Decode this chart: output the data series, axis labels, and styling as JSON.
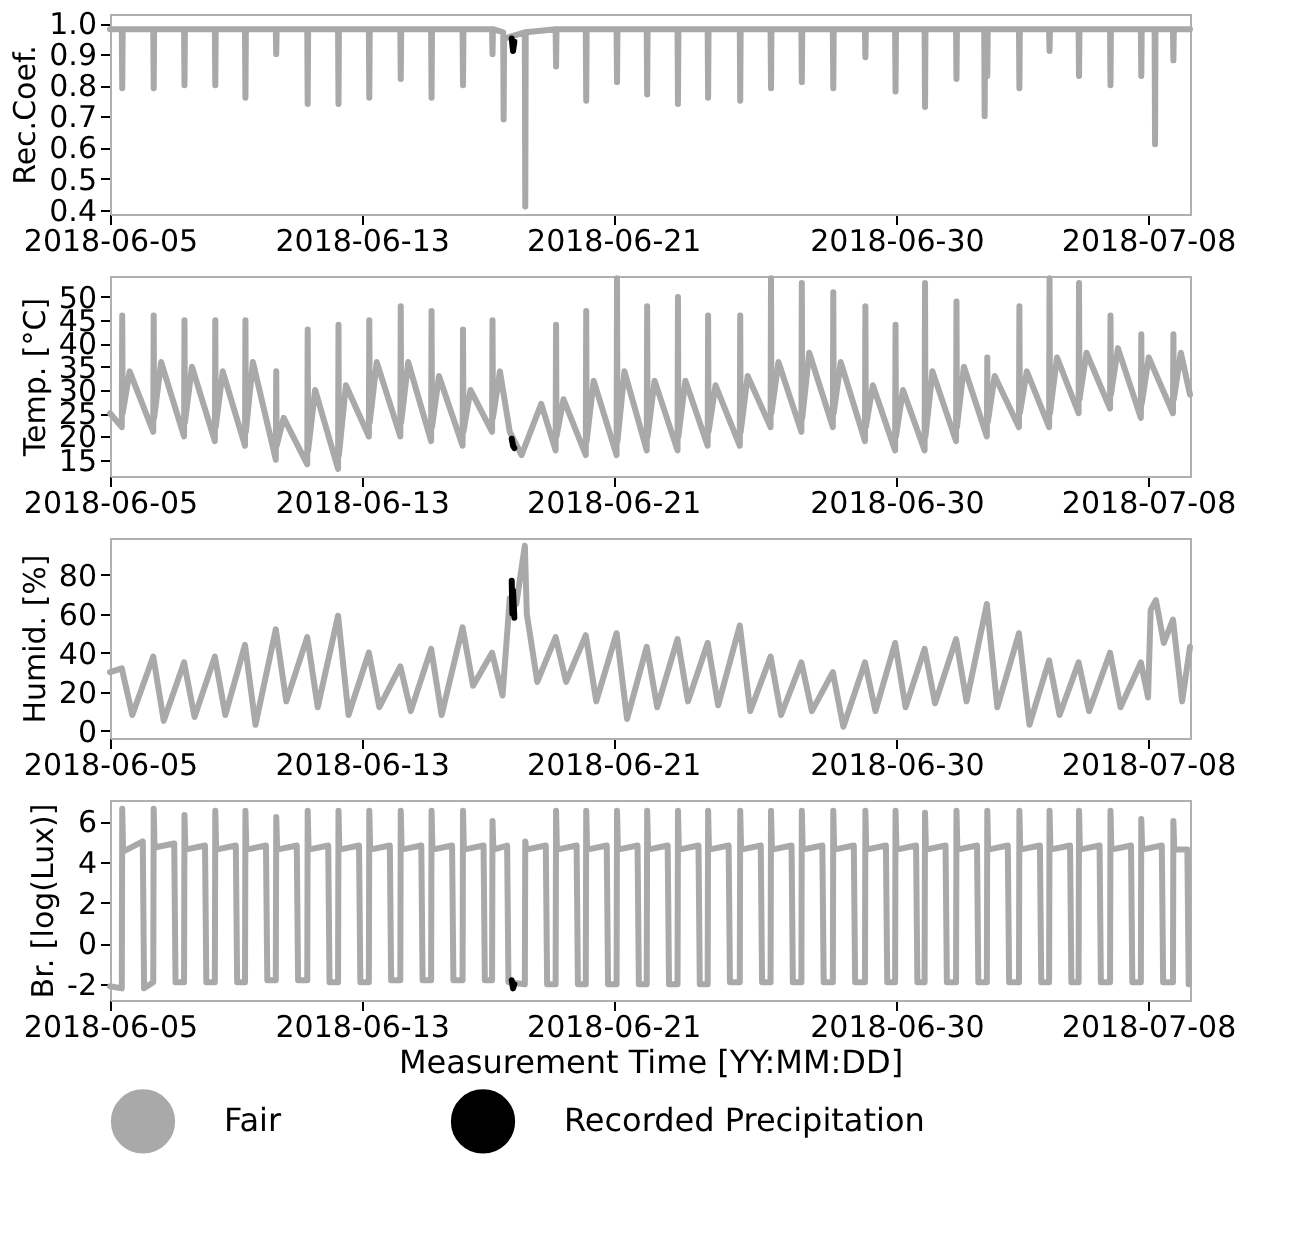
{
  "chart_data": [
    {
      "type": "line",
      "ylabel": "Rec.Coef.",
      "xlim": [
        "2018-06-05T00:00",
        "2018-07-09T08:00"
      ],
      "xticks": [
        "2018-06-05",
        "2018-06-13",
        "2018-06-21",
        "2018-06-30",
        "2018-07-08"
      ],
      "ylim": [
        0.386,
        1.029
      ],
      "yticks": [
        0.4,
        0.5,
        0.6,
        0.7,
        0.8,
        0.9,
        {
          "value": 1.0,
          "label": "1.0"
        }
      ],
      "grid": false,
      "legend": "bottom",
      "series": [
        {
          "name": "Fair",
          "color": "#a9a9a9",
          "x": [
            "2018-06-05T00:00",
            "2018-06-05T09:00",
            "2018-06-05T09:20",
            "2018-06-05T09:40",
            "2018-06-06T09:00",
            "2018-06-06T09:20",
            "2018-06-06T09:40",
            "2018-06-07T08:30",
            "2018-06-07T08:50",
            "2018-06-07T09:10",
            "2018-06-08T08:00",
            "2018-06-08T08:20",
            "2018-06-08T08:40",
            "2018-06-09T07:00",
            "2018-06-09T07:20",
            "2018-06-09T07:40",
            "2018-06-10T06:30",
            "2018-06-10T06:50",
            "2018-06-10T07:10",
            "2018-06-11T06:30",
            "2018-06-11T06:50",
            "2018-06-11T07:10",
            "2018-06-12T06:00",
            "2018-06-12T06:20",
            "2018-06-12T06:40",
            "2018-06-13T05:30",
            "2018-06-13T05:50",
            "2018-06-13T06:10",
            "2018-06-14T05:30",
            "2018-06-14T05:50",
            "2018-06-14T06:10",
            "2018-06-15T05:00",
            "2018-06-15T05:20",
            "2018-06-15T05:40",
            "2018-06-16T05:00",
            "2018-06-16T05:20",
            "2018-06-16T05:40",
            "2018-06-17T03:30",
            "2018-06-17T03:50",
            "2018-06-17T04:10",
            "2018-06-17T12:00",
            "2018-06-17T12:20",
            "2018-06-17T12:40",
            "2018-06-18T04:30",
            "2018-06-18T04:50",
            "2018-06-18T05:10",
            "2018-06-19T04:00",
            "2018-06-19T04:20",
            "2018-06-19T04:40",
            "2018-06-20T03:00",
            "2018-06-20T03:20",
            "2018-06-20T03:40",
            "2018-06-21T02:30",
            "2018-06-21T02:50",
            "2018-06-21T03:10",
            "2018-06-22T01:30",
            "2018-06-22T01:50",
            "2018-06-22T02:10",
            "2018-06-23T01:00",
            "2018-06-23T01:20",
            "2018-06-23T01:40",
            "2018-06-24T00:00",
            "2018-06-24T00:20",
            "2018-06-24T00:40",
            "2018-06-25T00:30",
            "2018-06-25T00:50",
            "2018-06-25T01:10",
            "2018-06-26T00:00",
            "2018-06-26T00:20",
            "2018-06-26T00:40",
            "2018-06-26T23:30",
            "2018-06-26T23:50",
            "2018-06-27T00:10",
            "2018-06-27T23:30",
            "2018-06-27T23:50",
            "2018-06-28T00:10",
            "2018-06-29T00:00",
            "2018-06-29T00:20",
            "2018-06-29T00:40",
            "2018-06-29T23:00",
            "2018-06-29T23:20",
            "2018-06-29T23:40",
            "2018-06-30T21:30",
            "2018-06-30T21:50",
            "2018-06-30T22:10",
            "2018-07-01T21:30",
            "2018-07-01T21:50",
            "2018-07-01T22:10",
            "2018-07-02T19:00",
            "2018-07-02T19:20",
            "2018-07-02T19:40",
            "2018-07-02T21:00",
            "2018-07-02T21:20",
            "2018-07-02T21:40",
            "2018-07-03T21:30",
            "2018-07-03T21:50",
            "2018-07-03T22:10",
            "2018-07-04T20:30",
            "2018-07-04T20:50",
            "2018-07-04T21:10",
            "2018-07-05T19:00",
            "2018-07-05T19:20",
            "2018-07-05T19:40",
            "2018-07-06T19:00",
            "2018-07-06T19:20",
            "2018-07-06T19:40",
            "2018-07-07T18:30",
            "2018-07-07T18:50",
            "2018-07-07T19:10",
            "2018-07-08T05:00",
            "2018-07-08T05:20",
            "2018-07-08T05:40",
            "2018-07-08T19:00",
            "2018-07-08T19:20",
            "2018-07-08T19:40",
            "2018-07-09T08:00"
          ],
          "values": [
            0.98,
            0.98,
            0.79,
            0.98,
            0.98,
            0.79,
            0.98,
            0.98,
            0.8,
            0.98,
            0.98,
            0.8,
            0.98,
            0.98,
            0.76,
            0.98,
            0.98,
            0.9,
            0.98,
            0.98,
            0.74,
            0.98,
            0.98,
            0.74,
            0.98,
            0.98,
            0.76,
            0.98,
            0.98,
            0.82,
            0.98,
            0.98,
            0.76,
            0.98,
            0.98,
            0.8,
            0.98,
            0.98,
            0.9,
            0.98,
            0.97,
            0.69,
            0.95,
            0.97,
            0.41,
            0.97,
            0.98,
            0.86,
            0.98,
            0.98,
            0.75,
            0.98,
            0.98,
            0.81,
            0.98,
            0.98,
            0.77,
            0.98,
            0.98,
            0.74,
            0.98,
            0.98,
            0.76,
            0.98,
            0.98,
            0.75,
            0.98,
            0.98,
            0.79,
            0.98,
            0.98,
            0.81,
            0.98,
            0.98,
            0.79,
            0.98,
            0.98,
            0.89,
            0.98,
            0.98,
            0.78,
            0.98,
            0.98,
            0.73,
            0.98,
            0.98,
            0.82,
            0.98,
            0.98,
            0.7,
            0.98,
            0.98,
            0.83,
            0.98,
            0.98,
            0.79,
            0.98,
            0.98,
            0.91,
            0.98,
            0.98,
            0.83,
            0.98,
            0.98,
            0.8,
            0.98,
            0.98,
            0.83,
            0.98,
            0.98,
            0.61,
            0.98,
            0.98,
            0.88,
            0.98,
            0.98
          ]
        },
        {
          "name": "Recorded Precipitation",
          "color": "#000000",
          "x": [
            "2018-06-17T18:30",
            "2018-06-17T19:30",
            "2018-06-17T20:30"
          ],
          "values": [
            0.95,
            0.91,
            0.94
          ]
        }
      ]
    },
    {
      "type": "line",
      "ylabel": "Temp. [°C]",
      "xlim": [
        "2018-06-05T00:00",
        "2018-07-09T08:00"
      ],
      "xticks": [
        "2018-06-05",
        "2018-06-13",
        "2018-06-21",
        "2018-06-30",
        "2018-07-08"
      ],
      "ylim": [
        11.5,
        54.5
      ],
      "yticks": [
        15,
        20,
        25,
        30,
        35,
        40,
        45,
        50
      ],
      "grid": false,
      "legend": "bottom",
      "series": [
        {
          "name": "Fair",
          "color": "#a9a9a9",
          "x": [
            "2018-06-05T00:00",
            "2018-06-05T09:00",
            "2018-06-05T09:20",
            "2018-06-05T09:40",
            "2018-06-05T15:00",
            "2018-06-06T09:00",
            "2018-06-06T09:20",
            "2018-06-06T09:40",
            "2018-06-06T15:00",
            "2018-06-07T08:30",
            "2018-06-07T08:50",
            "2018-06-07T09:10",
            "2018-06-07T14:30",
            "2018-06-08T08:00",
            "2018-06-08T08:20",
            "2018-06-08T08:40",
            "2018-06-08T14:00",
            "2018-06-09T07:00",
            "2018-06-09T07:20",
            "2018-06-09T07:40",
            "2018-06-09T13:00",
            "2018-06-10T06:30",
            "2018-06-10T06:50",
            "2018-06-10T07:10",
            "2018-06-10T12:30",
            "2018-06-11T06:30",
            "2018-06-11T06:50",
            "2018-06-11T07:10",
            "2018-06-11T12:30",
            "2018-06-12T06:00",
            "2018-06-12T06:20",
            "2018-06-12T06:40",
            "2018-06-12T12:00",
            "2018-06-13T05:30",
            "2018-06-13T05:50",
            "2018-06-13T06:10",
            "2018-06-13T11:30",
            "2018-06-14T05:30",
            "2018-06-14T05:50",
            "2018-06-14T06:10",
            "2018-06-14T11:30",
            "2018-06-15T05:00",
            "2018-06-15T05:20",
            "2018-06-15T05:40",
            "2018-06-15T11:00",
            "2018-06-16T05:00",
            "2018-06-16T05:20",
            "2018-06-16T05:40",
            "2018-06-16T11:00",
            "2018-06-17T03:30",
            "2018-06-17T03:50",
            "2018-06-17T04:10",
            "2018-06-17T09:30",
            "2018-06-17T17:00",
            "2018-06-18T02:00",
            "2018-06-18T17:00",
            "2018-06-19T04:00",
            "2018-06-19T04:20",
            "2018-06-19T04:40",
            "2018-06-19T10:00",
            "2018-06-20T03:00",
            "2018-06-20T03:20",
            "2018-06-20T03:40",
            "2018-06-20T09:00",
            "2018-06-21T02:30",
            "2018-06-21T02:50",
            "2018-06-21T03:10",
            "2018-06-21T08:30",
            "2018-06-22T01:30",
            "2018-06-22T01:50",
            "2018-06-22T02:10",
            "2018-06-22T07:30",
            "2018-06-23T01:00",
            "2018-06-23T01:20",
            "2018-06-23T01:40",
            "2018-06-23T07:00",
            "2018-06-24T00:00",
            "2018-06-24T00:20",
            "2018-06-24T00:40",
            "2018-06-24T06:00",
            "2018-06-25T00:30",
            "2018-06-25T00:50",
            "2018-06-25T01:10",
            "2018-06-25T06:30",
            "2018-06-26T00:00",
            "2018-06-26T00:20",
            "2018-06-26T00:40",
            "2018-06-26T06:00",
            "2018-06-26T23:30",
            "2018-06-26T23:50",
            "2018-06-27T00:10",
            "2018-06-27T05:30",
            "2018-06-27T23:30",
            "2018-06-27T23:50",
            "2018-06-28T00:10",
            "2018-06-28T05:30",
            "2018-06-29T00:00",
            "2018-06-29T00:20",
            "2018-06-29T00:40",
            "2018-06-29T06:00",
            "2018-06-29T23:00",
            "2018-06-29T23:20",
            "2018-06-29T23:40",
            "2018-06-30T05:00",
            "2018-06-30T21:30",
            "2018-06-30T21:50",
            "2018-06-30T22:10",
            "2018-07-01T03:30",
            "2018-07-01T21:30",
            "2018-07-01T21:50",
            "2018-07-01T22:10",
            "2018-07-02T03:30",
            "2018-07-02T21:00",
            "2018-07-02T21:20",
            "2018-07-02T21:40",
            "2018-07-03T03:00",
            "2018-07-03T21:30",
            "2018-07-03T21:50",
            "2018-07-03T22:10",
            "2018-07-04T03:30",
            "2018-07-04T20:30",
            "2018-07-04T20:50",
            "2018-07-04T21:10",
            "2018-07-05T02:30",
            "2018-07-05T19:00",
            "2018-07-05T19:20",
            "2018-07-05T19:40",
            "2018-07-06T01:00",
            "2018-07-06T19:00",
            "2018-07-06T19:20",
            "2018-07-06T19:40",
            "2018-07-07T01:00",
            "2018-07-07T18:30",
            "2018-07-07T18:50",
            "2018-07-07T19:10",
            "2018-07-08T00:30",
            "2018-07-08T19:00",
            "2018-07-08T19:20",
            "2018-07-08T19:40",
            "2018-07-09T01:00",
            "2018-07-09T08:00"
          ],
          "values": [
            25,
            22,
            46,
            25,
            34,
            21,
            46,
            24,
            36,
            20,
            45,
            23,
            35,
            19,
            45,
            22,
            34,
            18,
            45,
            21,
            36,
            15,
            34,
            18,
            24,
            14,
            43,
            17,
            30,
            13,
            44,
            16,
            31,
            20,
            45,
            23,
            36,
            20,
            48,
            23,
            36,
            19,
            47,
            22,
            33,
            18,
            43,
            21,
            30,
            21,
            45,
            24,
            34,
            21,
            16,
            27,
            17,
            44,
            20,
            28,
            16,
            47,
            19,
            32,
            16,
            54,
            19,
            34,
            17,
            48,
            20,
            32,
            17,
            50,
            20,
            32,
            18,
            46,
            21,
            31,
            18,
            46,
            21,
            33,
            22,
            54,
            25,
            36,
            21,
            53,
            24,
            38,
            22,
            51,
            25,
            36,
            19,
            48,
            22,
            31,
            17,
            44,
            20,
            30,
            17,
            53,
            20,
            34,
            19,
            49,
            22,
            35,
            20,
            37,
            23,
            33,
            22,
            48,
            25,
            34,
            22,
            54,
            25,
            37,
            25,
            53,
            28,
            38,
            26,
            46,
            29,
            39,
            24,
            42,
            27,
            37,
            25,
            42,
            28,
            38,
            29
          ]
        },
        {
          "name": "Recorded Precipitation",
          "color": "#000000",
          "x": [
            "2018-06-17T18:30",
            "2018-06-17T19:30",
            "2018-06-17T20:30"
          ],
          "values": [
            19.5,
            18,
            17.5
          ]
        }
      ]
    },
    {
      "type": "line",
      "ylabel": "Humid. [%]",
      "xlim": [
        "2018-06-05T00:00",
        "2018-07-09T08:00"
      ],
      "xticks": [
        "2018-06-05",
        "2018-06-13",
        "2018-06-21",
        "2018-06-30",
        "2018-07-08"
      ],
      "ylim": [
        -3.8,
        98.9
      ],
      "yticks": [
        0,
        20,
        40,
        60,
        80
      ],
      "grid": false,
      "legend": "bottom",
      "series": [
        {
          "name": "Fair",
          "color": "#a9a9a9",
          "x": [
            "2018-06-05T00:00",
            "2018-06-05T09:00",
            "2018-06-05T17:00",
            "2018-06-06T09:00",
            "2018-06-06T17:00",
            "2018-06-07T08:30",
            "2018-06-07T16:30",
            "2018-06-08T08:00",
            "2018-06-08T16:00",
            "2018-06-09T07:00",
            "2018-06-09T15:00",
            "2018-06-10T06:30",
            "2018-06-10T14:30",
            "2018-06-11T06:30",
            "2018-06-11T14:30",
            "2018-06-12T06:00",
            "2018-06-12T14:00",
            "2018-06-13T05:30",
            "2018-06-13T13:30",
            "2018-06-14T05:30",
            "2018-06-14T13:30",
            "2018-06-15T05:00",
            "2018-06-15T13:00",
            "2018-06-16T05:00",
            "2018-06-16T13:00",
            "2018-06-17T03:30",
            "2018-06-17T11:30",
            "2018-06-17T17:00",
            "2018-06-17T22:00",
            "2018-06-18T04:30",
            "2018-06-18T06:00",
            "2018-06-18T14:00",
            "2018-06-19T04:00",
            "2018-06-19T12:00",
            "2018-06-20T03:00",
            "2018-06-20T11:00",
            "2018-06-21T02:30",
            "2018-06-21T10:30",
            "2018-06-22T01:30",
            "2018-06-22T09:30",
            "2018-06-23T01:00",
            "2018-06-23T09:00",
            "2018-06-24T00:00",
            "2018-06-24T08:00",
            "2018-06-25T00:30",
            "2018-06-25T08:30",
            "2018-06-26T00:00",
            "2018-06-26T08:00",
            "2018-06-26T23:30",
            "2018-06-27T07:30",
            "2018-06-27T23:30",
            "2018-06-28T07:30",
            "2018-06-29T00:00",
            "2018-06-29T08:00",
            "2018-06-29T23:00",
            "2018-06-30T07:00",
            "2018-06-30T21:30",
            "2018-07-01T05:30",
            "2018-07-01T21:30",
            "2018-07-02T05:30",
            "2018-07-02T21:00",
            "2018-07-03T05:00",
            "2018-07-03T21:30",
            "2018-07-04T05:30",
            "2018-07-04T20:30",
            "2018-07-05T04:30",
            "2018-07-05T19:00",
            "2018-07-06T03:00",
            "2018-07-06T19:00",
            "2018-07-07T03:00",
            "2018-07-07T18:30",
            "2018-07-08T00:00",
            "2018-07-08T02:00",
            "2018-07-08T06:00",
            "2018-07-08T12:00",
            "2018-07-08T19:00",
            "2018-07-09T02:00",
            "2018-07-09T08:00"
          ],
          "values": [
            30,
            32,
            8,
            38,
            5,
            35,
            7,
            38,
            8,
            44,
            3,
            52,
            15,
            48,
            12,
            59,
            8,
            40,
            12,
            33,
            10,
            42,
            8,
            53,
            23,
            40,
            18,
            68,
            65,
            95,
            60,
            25,
            48,
            25,
            49,
            15,
            50,
            6,
            43,
            12,
            47,
            15,
            45,
            13,
            54,
            10,
            38,
            8,
            35,
            10,
            30,
            2,
            35,
            10,
            45,
            12,
            42,
            14,
            47,
            15,
            65,
            12,
            50,
            3,
            36,
            8,
            35,
            10,
            40,
            12,
            35,
            17,
            62,
            67,
            45,
            57,
            15,
            43
          ]
        },
        {
          "name": "Recorded Precipitation",
          "color": "#000000",
          "x": [
            "2018-06-17T18:30",
            "2018-06-17T19:00",
            "2018-06-17T19:30",
            "2018-06-17T20:30"
          ],
          "values": [
            77,
            60,
            72,
            58
          ]
        }
      ]
    },
    {
      "type": "line",
      "ylabel": "Br. [log(Lux)]",
      "xlabel": "Measurement Time [YY:MM:DD]",
      "legend": "bottom",
      "xlim": [
        "2018-06-05T00:00",
        "2018-07-09T08:00"
      ],
      "xticks": [
        "2018-06-05",
        "2018-06-13",
        "2018-06-21",
        "2018-06-30",
        "2018-07-08"
      ],
      "ylim": [
        -2.77,
        7.03
      ],
      "yticks": [
        -2,
        0,
        2,
        4,
        6
      ],
      "grid": false,
      "series": [
        {
          "name": "Fair",
          "color": "#a9a9a9",
          "x": [
            "2018-06-05T00:00",
            "2018-06-05T09:00",
            "2018-06-05T09:20",
            "2018-06-05T10:00",
            "2018-06-06T01:00",
            "2018-06-06T02:00",
            "2018-06-06T09:00",
            "2018-06-06T09:20",
            "2018-06-06T10:00",
            "2018-06-07T01:00",
            "2018-06-07T02:00",
            "2018-06-07T08:30",
            "2018-06-07T08:50",
            "2018-06-07T09:30",
            "2018-06-08T00:30",
            "2018-06-08T01:30",
            "2018-06-08T08:00",
            "2018-06-08T08:20",
            "2018-06-08T09:00",
            "2018-06-09T00:00",
            "2018-06-09T01:00",
            "2018-06-09T07:00",
            "2018-06-09T07:20",
            "2018-06-09T08:00",
            "2018-06-09T23:00",
            "2018-06-10T00:00",
            "2018-06-10T06:30",
            "2018-06-10T06:50",
            "2018-06-10T07:30",
            "2018-06-10T22:30",
            "2018-06-10T23:30",
            "2018-06-11T06:30",
            "2018-06-11T06:50",
            "2018-06-11T07:30",
            "2018-06-11T22:30",
            "2018-06-11T23:30",
            "2018-06-12T06:00",
            "2018-06-12T06:20",
            "2018-06-12T07:00",
            "2018-06-12T22:00",
            "2018-06-12T23:00",
            "2018-06-13T05:30",
            "2018-06-13T05:50",
            "2018-06-13T06:30",
            "2018-06-13T21:30",
            "2018-06-13T22:30",
            "2018-06-14T05:30",
            "2018-06-14T05:50",
            "2018-06-14T06:30",
            "2018-06-14T21:30",
            "2018-06-14T22:30",
            "2018-06-15T05:00",
            "2018-06-15T05:20",
            "2018-06-15T06:00",
            "2018-06-15T21:00",
            "2018-06-15T22:00",
            "2018-06-16T05:00",
            "2018-06-16T05:20",
            "2018-06-16T06:00",
            "2018-06-16T21:00",
            "2018-06-16T22:00",
            "2018-06-17T03:30",
            "2018-06-17T03:50",
            "2018-06-17T04:30",
            "2018-06-17T15:00",
            "2018-06-17T16:00",
            "2018-06-18T04:30",
            "2018-06-18T04:50",
            "2018-06-18T05:30",
            "2018-06-18T20:30",
            "2018-06-18T21:30",
            "2018-06-19T04:00",
            "2018-06-19T04:20",
            "2018-06-19T05:00",
            "2018-06-19T20:00",
            "2018-06-19T21:00",
            "2018-06-20T03:00",
            "2018-06-20T03:20",
            "2018-06-20T04:00",
            "2018-06-20T19:00",
            "2018-06-20T20:00",
            "2018-06-21T02:30",
            "2018-06-21T02:50",
            "2018-06-21T03:30",
            "2018-06-21T18:30",
            "2018-06-21T19:30",
            "2018-06-22T01:30",
            "2018-06-22T01:50",
            "2018-06-22T02:30",
            "2018-06-22T17:30",
            "2018-06-22T18:30",
            "2018-06-23T01:00",
            "2018-06-23T01:20",
            "2018-06-23T02:00",
            "2018-06-23T17:00",
            "2018-06-23T18:00",
            "2018-06-24T00:00",
            "2018-06-24T00:20",
            "2018-06-24T01:00",
            "2018-06-24T16:00",
            "2018-06-24T17:00",
            "2018-06-25T00:30",
            "2018-06-25T00:50",
            "2018-06-25T01:30",
            "2018-06-25T16:30",
            "2018-06-25T17:30",
            "2018-06-26T00:00",
            "2018-06-26T00:20",
            "2018-06-26T01:00",
            "2018-06-26T16:00",
            "2018-06-26T17:00",
            "2018-06-26T23:30",
            "2018-06-26T23:50",
            "2018-06-27T00:30",
            "2018-06-27T15:30",
            "2018-06-27T16:30",
            "2018-06-27T23:30",
            "2018-06-27T23:50",
            "2018-06-28T00:30",
            "2018-06-28T15:30",
            "2018-06-28T16:30",
            "2018-06-29T00:00",
            "2018-06-29T00:20",
            "2018-06-29T01:00",
            "2018-06-29T16:00",
            "2018-06-29T17:00",
            "2018-06-29T23:00",
            "2018-06-29T23:20",
            "2018-06-30T00:00",
            "2018-06-30T15:00",
            "2018-06-30T16:00",
            "2018-06-30T21:30",
            "2018-06-30T21:50",
            "2018-06-30T22:30",
            "2018-07-01T13:30",
            "2018-07-01T14:30",
            "2018-07-01T21:30",
            "2018-07-01T21:50",
            "2018-07-01T22:30",
            "2018-07-02T13:30",
            "2018-07-02T14:30",
            "2018-07-02T21:00",
            "2018-07-02T21:20",
            "2018-07-02T22:00",
            "2018-07-03T13:00",
            "2018-07-03T14:00",
            "2018-07-03T21:30",
            "2018-07-03T21:50",
            "2018-07-03T22:30",
            "2018-07-04T13:30",
            "2018-07-04T14:30",
            "2018-07-04T20:30",
            "2018-07-04T20:50",
            "2018-07-04T21:30",
            "2018-07-05T12:30",
            "2018-07-05T13:30",
            "2018-07-05T19:00",
            "2018-07-05T19:20",
            "2018-07-05T20:00",
            "2018-07-06T11:00",
            "2018-07-06T12:00",
            "2018-07-06T19:00",
            "2018-07-06T19:20",
            "2018-07-06T20:00",
            "2018-07-07T11:00",
            "2018-07-07T12:00",
            "2018-07-07T18:30",
            "2018-07-07T18:50",
            "2018-07-07T19:30",
            "2018-07-08T10:30",
            "2018-07-08T11:30",
            "2018-07-08T19:00",
            "2018-07-08T19:20",
            "2018-07-08T20:00",
            "2018-07-09T06:00",
            "2018-07-09T07:00"
          ],
          "values": [
            -2.1,
            -2.2,
            6.6,
            4.5,
            5.0,
            -2.2,
            -1.9,
            6.6,
            4.7,
            4.9,
            -1.9,
            -1.9,
            6.3,
            4.6,
            4.8,
            -1.9,
            -1.9,
            6.5,
            4.6,
            4.8,
            -1.9,
            -1.9,
            6.5,
            4.6,
            4.8,
            -1.8,
            -1.8,
            6.2,
            4.6,
            4.8,
            -1.8,
            -1.8,
            6.5,
            4.6,
            4.8,
            -1.9,
            -1.9,
            6.5,
            4.6,
            4.8,
            -1.9,
            -1.9,
            6.5,
            4.6,
            4.8,
            -1.8,
            -1.8,
            6.5,
            4.6,
            4.8,
            -1.8,
            -1.8,
            6.5,
            4.6,
            4.8,
            -1.8,
            -1.8,
            6.5,
            4.6,
            4.8,
            -1.8,
            -1.8,
            6.0,
            4.6,
            4.8,
            -1.9,
            -2.0,
            5.0,
            4.6,
            4.8,
            -2.0,
            -2.0,
            6.5,
            4.6,
            4.8,
            -2.0,
            -2.0,
            6.5,
            4.6,
            4.8,
            -2.0,
            -2.0,
            6.5,
            4.6,
            4.8,
            -2.0,
            -2.0,
            6.5,
            4.6,
            4.8,
            -2.0,
            -2.0,
            6.5,
            4.6,
            4.8,
            -2.0,
            -2.0,
            6.5,
            4.6,
            4.8,
            -1.9,
            -1.9,
            6.5,
            4.6,
            4.8,
            -1.9,
            -1.9,
            6.5,
            4.6,
            4.8,
            -1.9,
            -1.9,
            6.5,
            4.6,
            4.8,
            -1.9,
            -1.9,
            6.5,
            4.6,
            4.8,
            -1.9,
            -1.9,
            6.5,
            4.6,
            4.8,
            -1.9,
            -1.9,
            6.5,
            4.6,
            4.8,
            -1.9,
            -1.9,
            6.4,
            4.6,
            4.8,
            -1.9,
            -1.9,
            6.5,
            4.6,
            4.8,
            -1.9,
            -1.9,
            6.5,
            4.6,
            4.8,
            -1.9,
            -1.9,
            6.5,
            4.6,
            4.8,
            -1.9,
            -1.9,
            6.5,
            4.6,
            4.8,
            -1.9,
            -1.9,
            6.5,
            4.6,
            4.8,
            -1.9,
            -1.9,
            6.5,
            4.6,
            4.8,
            -1.9,
            -1.9,
            6.1,
            4.6,
            4.8,
            -1.9,
            -1.9,
            6.0,
            4.6,
            4.6,
            -2.0
          ]
        },
        {
          "name": "Recorded Precipitation",
          "color": "#000000",
          "x": [
            "2018-06-17T18:30",
            "2018-06-17T19:30",
            "2018-06-17T20:30"
          ],
          "values": [
            -1.8,
            -2.2,
            -2.0
          ]
        }
      ]
    }
  ]
}
